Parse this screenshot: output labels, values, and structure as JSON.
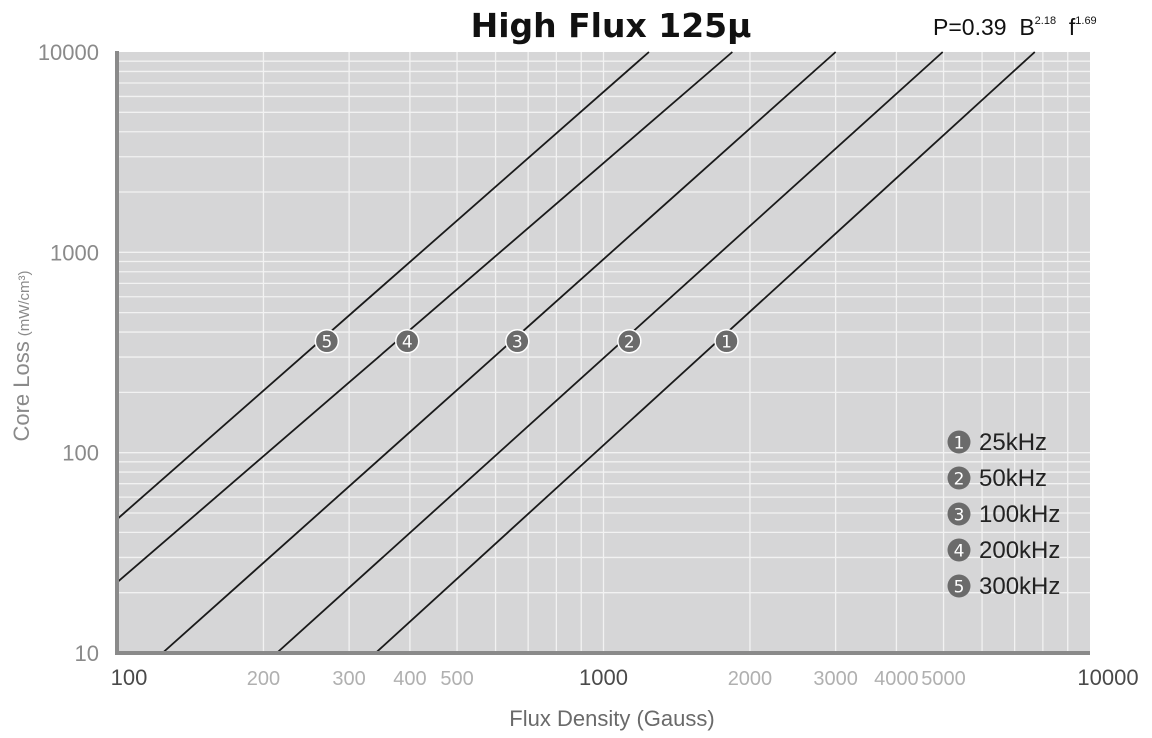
{
  "chart_data": {
    "type": "line",
    "title": "High Flux 125µ",
    "formula": {
      "prefix": "P=0.39",
      "b_symbol": "B",
      "b_exp": "2.18",
      "f_symbol": "f",
      "f_exp": "1.69"
    },
    "xlabel": "Flux Density (Gauss)",
    "ylabel_main": "Core Loss",
    "ylabel_unit": "(mW/cm³)",
    "x_scale": "log",
    "y_scale": "log",
    "xlim": [
      100,
      10000
    ],
    "ylim": [
      10,
      10000
    ],
    "x_ticks": [
      {
        "value": 100,
        "label": "100",
        "major": true
      },
      {
        "value": 200,
        "label": "200",
        "major": false
      },
      {
        "value": 300,
        "label": "300",
        "major": false
      },
      {
        "value": 400,
        "label": "400",
        "major": false
      },
      {
        "value": 500,
        "label": "500",
        "major": false
      },
      {
        "value": 1000,
        "label": "1000",
        "major": true
      },
      {
        "value": 2000,
        "label": "2000",
        "major": false
      },
      {
        "value": 3000,
        "label": "3000",
        "major": false
      },
      {
        "value": 4000,
        "label": "4000",
        "major": false
      },
      {
        "value": 5000,
        "label": "5000",
        "major": false
      },
      {
        "value": 10000,
        "label": "10000",
        "major": true
      }
    ],
    "y_ticks": [
      {
        "value": 10,
        "label": "10"
      },
      {
        "value": 100,
        "label": "100"
      },
      {
        "value": 1000,
        "label": "1000"
      },
      {
        "value": 10000,
        "label": "10000"
      }
    ],
    "grid": true,
    "legend_position": "bottom-right",
    "series": [
      {
        "marker": "1",
        "name": "25kHz",
        "x": [
          340,
          7700
        ],
        "y": [
          10,
          10000
        ]
      },
      {
        "marker": "2",
        "name": "50kHz",
        "x": [
          213,
          4980
        ],
        "y": [
          10,
          10000
        ]
      },
      {
        "marker": "3",
        "name": "100kHz",
        "x": [
          124,
          3000
        ],
        "y": [
          10,
          10000
        ]
      },
      {
        "marker": "4",
        "name": "200kHz",
        "x": [
          100,
          1840
        ],
        "y": [
          22.5,
          10000
        ]
      },
      {
        "marker": "5",
        "name": "300kHz",
        "x": [
          100,
          1240
        ],
        "y": [
          46.5,
          10000
        ]
      }
    ],
    "markers": [
      {
        "label": "1",
        "x": 1790,
        "y": 360
      },
      {
        "label": "2",
        "x": 1130,
        "y": 360
      },
      {
        "label": "3",
        "x": 665,
        "y": 360
      },
      {
        "label": "4",
        "x": 395,
        "y": 360
      },
      {
        "label": "5",
        "x": 270,
        "y": 360
      }
    ],
    "colors": {
      "plot_bg": "#d6d6d7",
      "grid": "#f2f2f2",
      "line": "#1a1a1a",
      "marker_fill": "#6b6b6b",
      "axis": "#8a8a8a",
      "tick_major": "#4a4a4a",
      "tick_minor": "#b0b0b0",
      "axis_label": "#8a8a8a"
    }
  }
}
